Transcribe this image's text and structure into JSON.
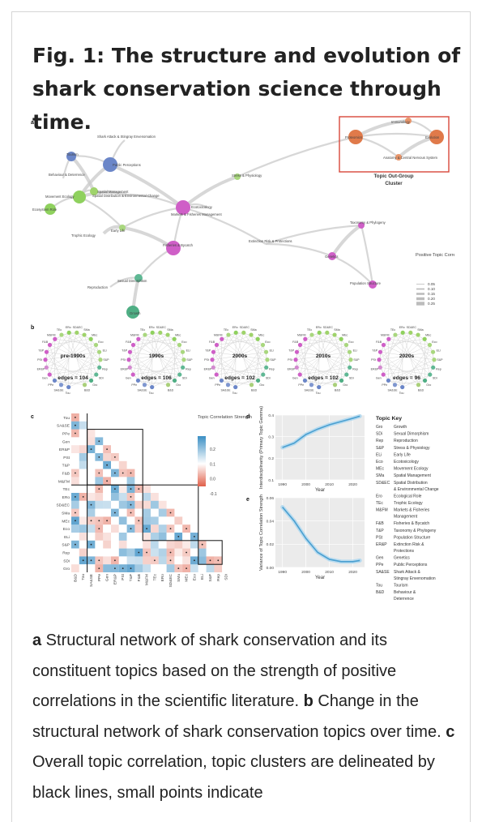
{
  "title": "Fig. 1: The structure and evolution of shark conservation science through time.",
  "panel_labels": [
    "a",
    "b",
    "c",
    "d",
    "e"
  ],
  "network_a": {
    "nodes": [
      {
        "label": "Tourism",
        "color": "#6b86c8"
      },
      {
        "label": "Behaviour & Deterrence",
        "color": "#aad07a"
      },
      {
        "label": "Spatial Management",
        "color": "#9fd36b"
      },
      {
        "label": "Movement Ecology",
        "color": "#8fd15e"
      },
      {
        "label": "Spatial Distribution & Environmental Change",
        "color": "#9fd36b"
      },
      {
        "label": "Ecosystem Role",
        "color": "#8fd15e"
      },
      {
        "label": "Trophic Ecology",
        "color": "#a9d77e"
      },
      {
        "label": "Early Life",
        "color": "#a9d77e"
      },
      {
        "label": "Shark Attack & Stingray Envenomation",
        "color": "#7f97d0"
      },
      {
        "label": "Public Perceptions",
        "color": "#6b86c8"
      },
      {
        "label": "Stress & Physiology",
        "color": "#a9d77e"
      },
      {
        "label": "Markets & Fisheries Management",
        "color": "#cf5fc7"
      },
      {
        "label": "Ecotoxicology",
        "color": "#a9d77e"
      },
      {
        "label": "Fisheries & Bycatch",
        "color": "#cf5fc7"
      },
      {
        "label": "Extinction Risk & Protections",
        "color": "#d48ad0"
      },
      {
        "label": "Taxonomy & Phylogeny",
        "color": "#cf5fc7"
      },
      {
        "label": "Genetics",
        "color": "#cf5fc7"
      },
      {
        "label": "Population Structure",
        "color": "#cf5fc7"
      },
      {
        "label": "Sexual Dimorphism",
        "color": "#5fb894"
      },
      {
        "label": "Reproduction",
        "color": "#5fb894"
      },
      {
        "label": "Growth",
        "color": "#4fae84"
      },
      {
        "label": "Immunology",
        "color": "#e8956a"
      },
      {
        "label": "Proteomics",
        "color": "#e07a4a"
      },
      {
        "label": "Evolution",
        "color": "#e07a4a"
      },
      {
        "label": "Anatomy & Central Nervous System",
        "color": "#e8956a"
      }
    ],
    "outgroup_label": "Topic Out-Group Cluster",
    "legend_title": "Positive Topic Correlation Strength",
    "legend_values": [
      "0.05",
      "0.10",
      "0.15",
      "0.20",
      "0.25"
    ]
  },
  "panel_b": {
    "periods": [
      {
        "label": "pre-1990s",
        "edges": "edges = 104"
      },
      {
        "label": "1990s",
        "edges": "edges = 106"
      },
      {
        "label": "2000s",
        "edges": "edges = 102"
      },
      {
        "label": "2010s",
        "edges": "edges = 102"
      },
      {
        "label": "2020s",
        "edges": "edges = 96"
      }
    ],
    "ring_labels": [
      "Tou",
      "SA&SE",
      "PPe",
      "Gen",
      "ER&P",
      "PSt",
      "T&P",
      "F&B",
      "M&FM",
      "TEc",
      "ERo",
      "SD&EC",
      "SMa",
      "MEc",
      "Eco",
      "ELi",
      "S&P",
      "Rep",
      "SDi",
      "Gro",
      "B&D"
    ]
  },
  "heatmap_c": {
    "topics": [
      "Tou",
      "SA&SE",
      "PPe",
      "Gen",
      "ER&P",
      "PSt",
      "T&P",
      "F&B",
      "M&FM",
      "TEc",
      "ERo",
      "SD&EC",
      "SMa",
      "MEc",
      "Eco",
      "ELi",
      "S&P",
      "Rep",
      "SDi",
      "Gro",
      "B&D"
    ],
    "x_topics": [
      "B&D",
      "Tou",
      "SA&SE",
      "PPe",
      "Gen",
      "ER&P",
      "PSt",
      "T&P",
      "F&B",
      "M&FM",
      "TEc",
      "ERo",
      "SD&EC",
      "SMa",
      "MEc",
      "Eco",
      "ELi",
      "S&P",
      "Rep",
      "SDi"
    ],
    "y_topics": [
      "Tou",
      "SA&SE",
      "PPe",
      "Gen",
      "ER&P",
      "PSt",
      "T&P",
      "F&B",
      "M&FM",
      "TEc",
      "ERo",
      "SD&EC",
      "SMa",
      "MEc",
      "Eco",
      "ELi",
      "S&P",
      "Rep",
      "SDi",
      "Gro"
    ],
    "legend_title": "Topic Correlation Strength",
    "legend_ticks": [
      "0.2",
      "0.1",
      "0.0",
      "-0.1"
    ],
    "colors": {
      "positive": "#3b8fc4",
      "negative": "#e0604a"
    }
  },
  "chart_data": [
    {
      "type": "line",
      "panel": "d",
      "xlabel": "Year",
      "ylabel": "Interdisciplinarity (Primary Topic Gamma)",
      "x": [
        1990,
        1995,
        2000,
        2005,
        2010,
        2015,
        2020,
        2023
      ],
      "values": [
        0.25,
        0.27,
        0.31,
        0.335,
        0.355,
        0.37,
        0.385,
        0.395
      ],
      "ylim": [
        0.1,
        0.4
      ],
      "yticks": [
        "0.4",
        "0.3",
        "0.2",
        "0.1"
      ],
      "xticks": [
        "1990",
        "2000",
        "2010",
        "2020"
      ],
      "color": "#4a9fd0"
    },
    {
      "type": "line",
      "panel": "e",
      "xlabel": "Year",
      "ylabel": "Variance of Topic Correlation Strength",
      "x": [
        1990,
        1995,
        2000,
        2005,
        2010,
        2015,
        2020,
        2023
      ],
      "values": [
        0.052,
        0.04,
        0.025,
        0.013,
        0.007,
        0.005,
        0.005,
        0.006
      ],
      "ylim": [
        0,
        0.06
      ],
      "yticks": [
        "0.06",
        "0.04",
        "0.02",
        "0.00"
      ],
      "xticks": [
        "1990",
        "2000",
        "2010",
        "2020"
      ],
      "color": "#4a9fd0"
    }
  ],
  "topic_key": {
    "title": "Topic Key",
    "items": [
      {
        "code": "Gro",
        "name": "Growth"
      },
      {
        "code": "SDi",
        "name": "Sexual Dimorphism"
      },
      {
        "code": "Rep",
        "name": "Reproduction"
      },
      {
        "code": "S&P",
        "name": "Stress & Physiology"
      },
      {
        "code": "ELi",
        "name": "Early Life"
      },
      {
        "code": "Eco",
        "name": "Ecotoxicology"
      },
      {
        "code": "MEc",
        "name": "Movement Ecology"
      },
      {
        "code": "SMa",
        "name": "Spatial Management"
      },
      {
        "code": "SD&EC",
        "name": "Spatial Distribution & Environmental Change"
      },
      {
        "code": "Ero",
        "name": "Ecological Role"
      },
      {
        "code": "TEc",
        "name": "Trophic Ecology"
      },
      {
        "code": "M&FM",
        "name": "Markets & Fisheries Management"
      },
      {
        "code": "F&B",
        "name": "Fisheries & Bycatch"
      },
      {
        "code": "T&P",
        "name": "Taxonomy & Phylogeny"
      },
      {
        "code": "PSt",
        "name": "Population Structure"
      },
      {
        "code": "ER&P",
        "name": "Extinction Risk & Protections"
      },
      {
        "code": "Gen",
        "name": "Genetics"
      },
      {
        "code": "PPe",
        "name": "Public Perceptions"
      },
      {
        "code": "SA&SE",
        "name": "Shark Attack & Stingray Envenomation"
      },
      {
        "code": "Tou",
        "name": "Tourism"
      },
      {
        "code": "B&D",
        "name": "Behaviour & Deterrence"
      }
    ]
  },
  "caption": {
    "a_label": "a",
    "a_text": " Structural network of shark conservation and its constituent topics based on the strength of positive correlations in the scientific literature. ",
    "b_label": "b",
    "b_text": " Change in the structural network of shark conservation topics over time. ",
    "c_label": "c",
    "c_text": " Overall topic correlation, topic clusters are delineated by black lines, small points indicate"
  }
}
